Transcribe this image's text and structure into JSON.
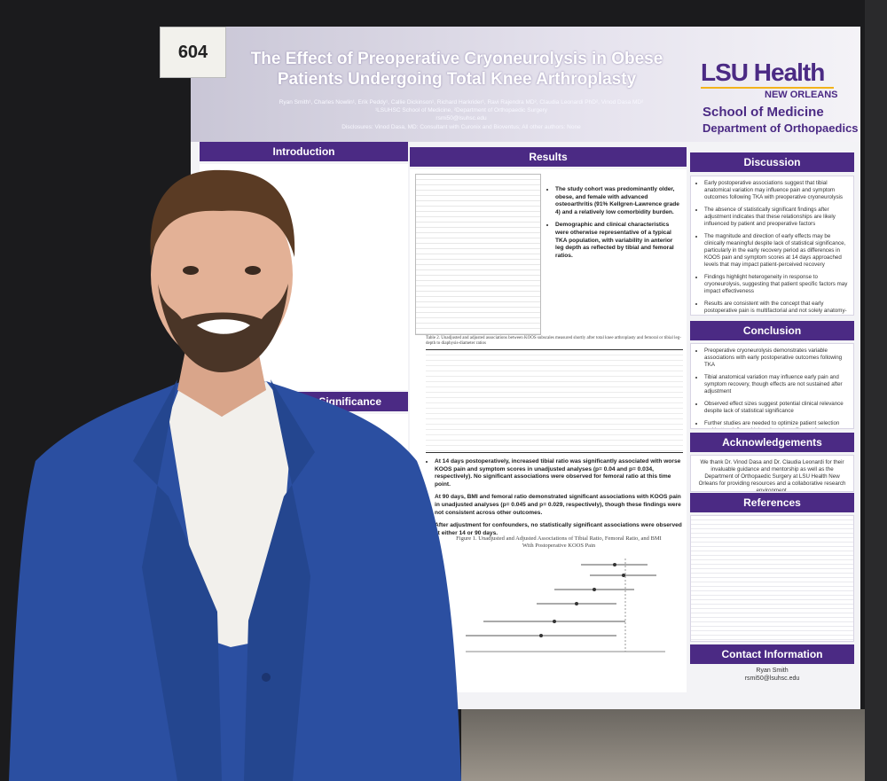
{
  "sign": {
    "number": "604"
  },
  "poster": {
    "title": "The Effect of Preoperative Cryoneurolysis in Obese Patients Undergoing Total Knee Arthroplasty",
    "authors": "Ryan Smith¹, Charles Nowlin¹, Erik Peddy¹, Callie Dickinson¹, Richard Harkrider¹, Ravi Rajendra MD², Claudia Leonardi PhD², Vinod Dasa MD²",
    "affiliations": "¹LSUHSC School of Medicine, ²Department of Orthopaedic Surgery",
    "email": "rsmi50@lsuhsc.edu",
    "disclosures": "Disclosures: Vinod Dasa, MD: Consultant with Curonix and Bioventus; All other authors: None",
    "logo": {
      "brand": "LSU Health",
      "city": "NEW ORLEANS",
      "school": "School of Medicine",
      "department": "Department of Orthopaedics"
    },
    "introduction": {
      "heading": "Introduction",
      "significance_heading": "Significance"
    },
    "results": {
      "heading": "Results",
      "table2_caption": "Table 2. Unadjusted and adjusted associations between KOOS subscales measured shortly after total knee arthroplasty and femoral or tibial leg-depth to diaphysis-diameter ratios",
      "bullets_top": [
        "The study cohort was predominantly older, obese, and female with advanced osteoarthritis (91% Kellgren-Lawrence grade 4) and a relatively low comorbidity burden.",
        "Demographic and clinical characteristics were otherwise representative of a typical TKA population, with variability in anterior leg depth as reflected by tibial and femoral ratios."
      ],
      "bullets_bottom": [
        "At 14 days postoperatively, increased tibial ratio was significantly associated with worse KOOS pain and symptom scores in unadjusted analyses (p= 0.04 and p= 0.034, respectively). No significant associations were observed for femoral ratio at this time point.",
        "At 90 days, BMI and femoral ratio demonstrated significant associations with KOOS pain in unadjusted analyses (p= 0.045 and p= 0.029, respectively), though these findings were not consistent across other outcomes.",
        "After adjustment for confounders, no statistically significant associations were observed at either 14 or 90 days."
      ],
      "figure_caption": "Figure 1. Unadjusted and Adjusted Associations of Tibial Ratio, Femoral Ratio, and BMI With Postoperative KOOS Pain"
    },
    "discussion": {
      "heading": "Discussion",
      "bullets": [
        "Early postoperative associations suggest that tibial anatomical variation may influence pain and symptom outcomes following TKA with preoperative cryoneurolysis",
        "The absence of statistically significant findings after adjustment indicates that these relationships are likely influenced by patient and preoperative factors",
        "The magnitude and direction of early effects may be clinically meaningful despite lack of statistical significance, particularly in the early recovery period as differences in KOOS pain and symptom scores at 14 days approached levels that may impact patient-perceived recovery",
        "Findings highlight heterogeneity in response to cryoneurolysis, suggesting that patient specific factors may impact effectiveness",
        "Results are consistent with the concept that early postoperative pain is multifactorial and not solely anatomy-based"
      ]
    },
    "conclusion": {
      "heading": "Conclusion",
      "bullets": [
        "Preoperative cryoneurolysis demonstrates variable associations with early postoperative outcomes following TKA",
        "Tibial anatomical variation may influence early pain and symptom recovery, though effects are not sustained after adjustment",
        "Observed effect sizes suggest potential clinical relevance despite lack of statistical significance",
        "Further studies are needed to optimize patient selection and better define which patients benefit most from cryoneurolysis"
      ]
    },
    "acknowledgements": {
      "heading": "Acknowledgements",
      "text": "We thank Dr. Vinod Dasa and Dr. Claudia Leonardi for their invaluable guidance and mentorship as well as the Department of Orthopaedic Surgery at LSU Health New Orleans for providing resources and a collaborative research environment."
    },
    "references": {
      "heading": "References"
    },
    "contact": {
      "heading": "Contact Information",
      "name": "Ryan Smith",
      "email": "rsmi50@lsuhsc.edu"
    }
  }
}
